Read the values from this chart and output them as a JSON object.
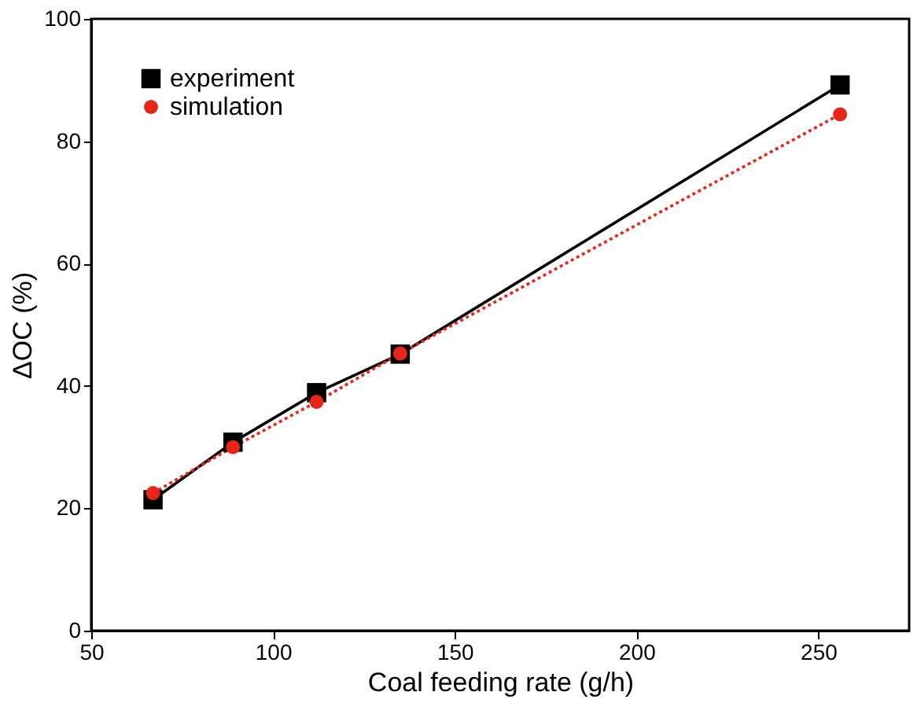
{
  "chart_data": {
    "type": "line",
    "xlabel": "Coal feeding rate (g/h)",
    "ylabel": "ΔOC (%)",
    "x": [
      67,
      89,
      112,
      135,
      256
    ],
    "series": [
      {
        "name": "experiment",
        "color": "#000000",
        "values": [
          21.4,
          30.8,
          38.9,
          45.2,
          89.2
        ],
        "marker": "square",
        "line_style": "solid"
      },
      {
        "name": "simulation",
        "color": "#e8251b",
        "values": [
          22.5,
          30.0,
          37.4,
          45.3,
          84.4
        ],
        "marker": "circle",
        "line_style": "dotted"
      }
    ],
    "xlim": [
      50,
      275
    ],
    "xticks": [
      50,
      100,
      150,
      200,
      250
    ],
    "ylim": [
      0,
      100
    ],
    "yticks": [
      0,
      20,
      40,
      60,
      80,
      100
    ],
    "grid": false,
    "legend": "top left"
  }
}
